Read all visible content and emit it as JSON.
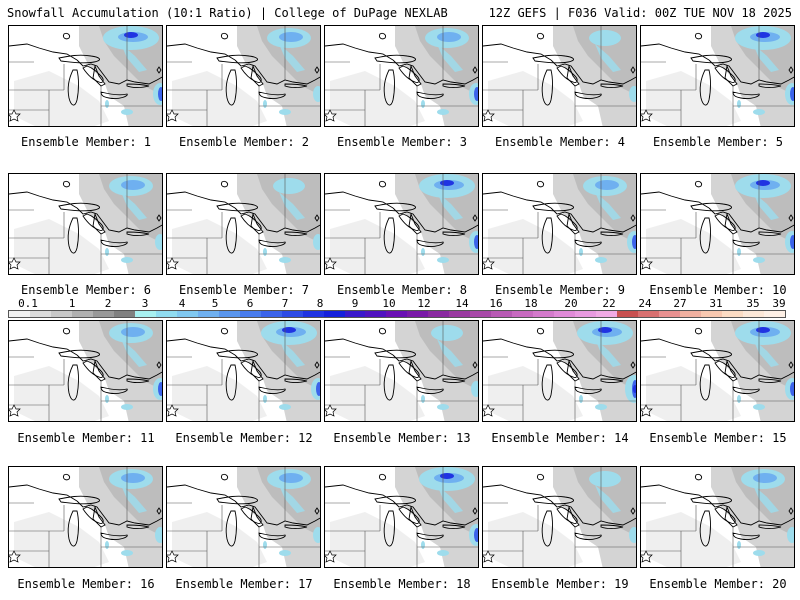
{
  "header": {
    "left_title": "Snowfall Accumulation (10:1 Ratio) | College of DuPage NEXLAB",
    "right_title": "12Z GEFS | F036 Valid: 00Z TUE NOV 18 2025"
  },
  "colorbar": {
    "labels": [
      "0.1",
      "1",
      "2",
      "3",
      "4",
      "5",
      "6",
      "7",
      "8",
      "9",
      "10",
      "12",
      "14",
      "16",
      "18",
      "20",
      "22",
      "24",
      "27",
      "31",
      "35",
      "39"
    ],
    "colors": [
      "#f2f2f2",
      "#dcdcdc",
      "#c8c8c8",
      "#b0b0b0",
      "#989898",
      "#808080",
      "#a8f0f0",
      "#90dcf0",
      "#80c8f0",
      "#6fb0f0",
      "#5a96ee",
      "#4a7cec",
      "#3c64ea",
      "#2e4ce6",
      "#2034e2",
      "#1520dc",
      "#3a18cc",
      "#5012c0",
      "#6a10b4",
      "#7a1aa8",
      "#8a2aa0",
      "#9a3aa0",
      "#a84aa8",
      "#b85ab4",
      "#c86ac0",
      "#d47acc",
      "#e08ad8",
      "#e89ae0",
      "#f0aae4",
      "#c85050",
      "#d87070",
      "#e89090",
      "#f0b0a0",
      "#f8c8b0",
      "#fcdcc4",
      "#fde8d8",
      "#fef0e6"
    ]
  },
  "members": [
    {
      "label": "Ensemble Member: 1",
      "north_blob": 3,
      "east_blob": 2,
      "south_blob": 1
    },
    {
      "label": "Ensemble Member: 2",
      "north_blob": 2,
      "east_blob": 1,
      "south_blob": 1
    },
    {
      "label": "Ensemble Member: 3",
      "north_blob": 2,
      "east_blob": 2,
      "south_blob": 1
    },
    {
      "label": "Ensemble Member: 4",
      "north_blob": 1,
      "east_blob": 1,
      "south_blob": 0
    },
    {
      "label": "Ensemble Member: 5",
      "north_blob": 3,
      "east_blob": 2,
      "south_blob": 1
    },
    {
      "label": "Ensemble Member: 6",
      "north_blob": 2,
      "east_blob": 1,
      "south_blob": 1
    },
    {
      "label": "Ensemble Member: 7",
      "north_blob": 1,
      "east_blob": 1,
      "south_blob": 1
    },
    {
      "label": "Ensemble Member: 8",
      "north_blob": 3,
      "east_blob": 2,
      "south_blob": 1
    },
    {
      "label": "Ensemble Member: 9",
      "north_blob": 2,
      "east_blob": 2,
      "south_blob": 1
    },
    {
      "label": "Ensemble Member: 10",
      "north_blob": 3,
      "east_blob": 2,
      "south_blob": 1
    },
    {
      "label": "Ensemble Member: 11",
      "north_blob": 2,
      "east_blob": 2,
      "south_blob": 1
    },
    {
      "label": "Ensemble Member: 12",
      "north_blob": 3,
      "east_blob": 2,
      "south_blob": 1
    },
    {
      "label": "Ensemble Member: 13",
      "north_blob": 1,
      "east_blob": 1,
      "south_blob": 1
    },
    {
      "label": "Ensemble Member: 14",
      "north_blob": 3,
      "east_blob": 3,
      "south_blob": 1
    },
    {
      "label": "Ensemble Member: 15",
      "north_blob": 3,
      "east_blob": 2,
      "south_blob": 1
    },
    {
      "label": "Ensemble Member: 16",
      "north_blob": 2,
      "east_blob": 1,
      "south_blob": 1
    },
    {
      "label": "Ensemble Member: 17",
      "north_blob": 2,
      "east_blob": 1,
      "south_blob": 1
    },
    {
      "label": "Ensemble Member: 18",
      "north_blob": 3,
      "east_blob": 2,
      "south_blob": 1
    },
    {
      "label": "Ensemble Member: 19",
      "north_blob": 1,
      "east_blob": 1,
      "south_blob": 0
    },
    {
      "label": "Ensemble Member: 20",
      "north_blob": 2,
      "east_blob": 1,
      "south_blob": 1
    }
  ]
}
